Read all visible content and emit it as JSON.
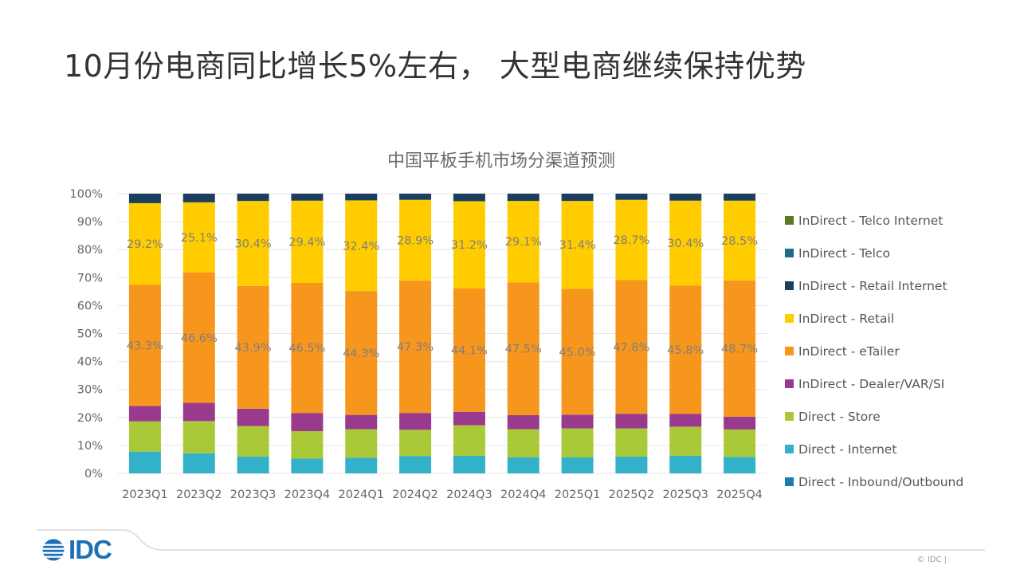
{
  "slide_title": "10月份电商同比增长5%左右， 大型电商继续保持优势",
  "footer": {
    "logo_text": "IDC",
    "copyright": "© IDC |"
  },
  "chart_data": {
    "type": "bar",
    "stacked": true,
    "title": "中国平板手机市场分渠道预测",
    "xlabel": "",
    "ylabel": "",
    "ylim": [
      0,
      100
    ],
    "y_ticks": [
      "0%",
      "10%",
      "20%",
      "30%",
      "40%",
      "50%",
      "60%",
      "70%",
      "80%",
      "90%",
      "100%"
    ],
    "grid": true,
    "legend_position": "right",
    "categories": [
      "2023Q1",
      "2023Q2",
      "2023Q3",
      "2023Q4",
      "2024Q1",
      "2024Q2",
      "2024Q3",
      "2024Q4",
      "2025Q1",
      "2025Q2",
      "2025Q3",
      "2025Q4"
    ],
    "series": [
      {
        "name": "Direct - Inbound/Outbound",
        "color": "#1f77b4",
        "values": [
          0,
          0,
          0,
          0,
          0,
          0,
          0,
          0,
          0,
          0,
          0,
          0
        ]
      },
      {
        "name": "Direct - Internet",
        "color": "#33b1c9",
        "values": [
          7.8,
          7.2,
          6.0,
          5.3,
          5.6,
          6.2,
          6.3,
          5.8,
          5.7,
          6.0,
          6.3,
          5.9
        ]
      },
      {
        "name": "Direct - Store",
        "color": "#a9c938",
        "values": [
          10.8,
          11.5,
          10.9,
          9.8,
          10.2,
          9.4,
          10.9,
          10.0,
          10.4,
          10.1,
          10.4,
          9.8
        ]
      },
      {
        "name": "InDirect - Dealer/VAR/SI",
        "color": "#9a3a8e",
        "values": [
          5.5,
          6.5,
          6.2,
          6.5,
          5.1,
          6.0,
          4.8,
          5.0,
          4.9,
          5.2,
          4.6,
          4.6
        ]
      },
      {
        "name": "InDirect - eTailer",
        "color": "#f7961d",
        "values": [
          43.3,
          46.6,
          43.9,
          46.5,
          44.3,
          47.3,
          44.1,
          47.5,
          45.0,
          47.8,
          45.8,
          48.7
        ]
      },
      {
        "name": "InDirect - Retail",
        "color": "#ffcc00",
        "values": [
          29.2,
          25.1,
          30.4,
          29.4,
          32.4,
          28.9,
          31.2,
          29.1,
          31.4,
          28.7,
          30.4,
          28.5
        ]
      },
      {
        "name": "InDirect - Retail Internet",
        "color": "#1c3f60",
        "values": [
          3.4,
          3.1,
          2.6,
          2.5,
          2.4,
          2.2,
          2.7,
          2.6,
          2.6,
          2.2,
          2.5,
          2.5
        ]
      },
      {
        "name": "InDirect - Telco",
        "color": "#1f6d84",
        "values": [
          0,
          0,
          0,
          0,
          0,
          0,
          0,
          0,
          0,
          0,
          0,
          0
        ]
      },
      {
        "name": "InDirect - Telco Internet",
        "color": "#5d7a1f",
        "values": [
          0,
          0,
          0,
          0,
          0,
          0,
          0,
          0,
          0,
          0,
          0,
          0
        ]
      }
    ],
    "labeled_series": [
      "InDirect - eTailer",
      "InDirect - Retail"
    ],
    "label_color": "#7f7f7f"
  }
}
